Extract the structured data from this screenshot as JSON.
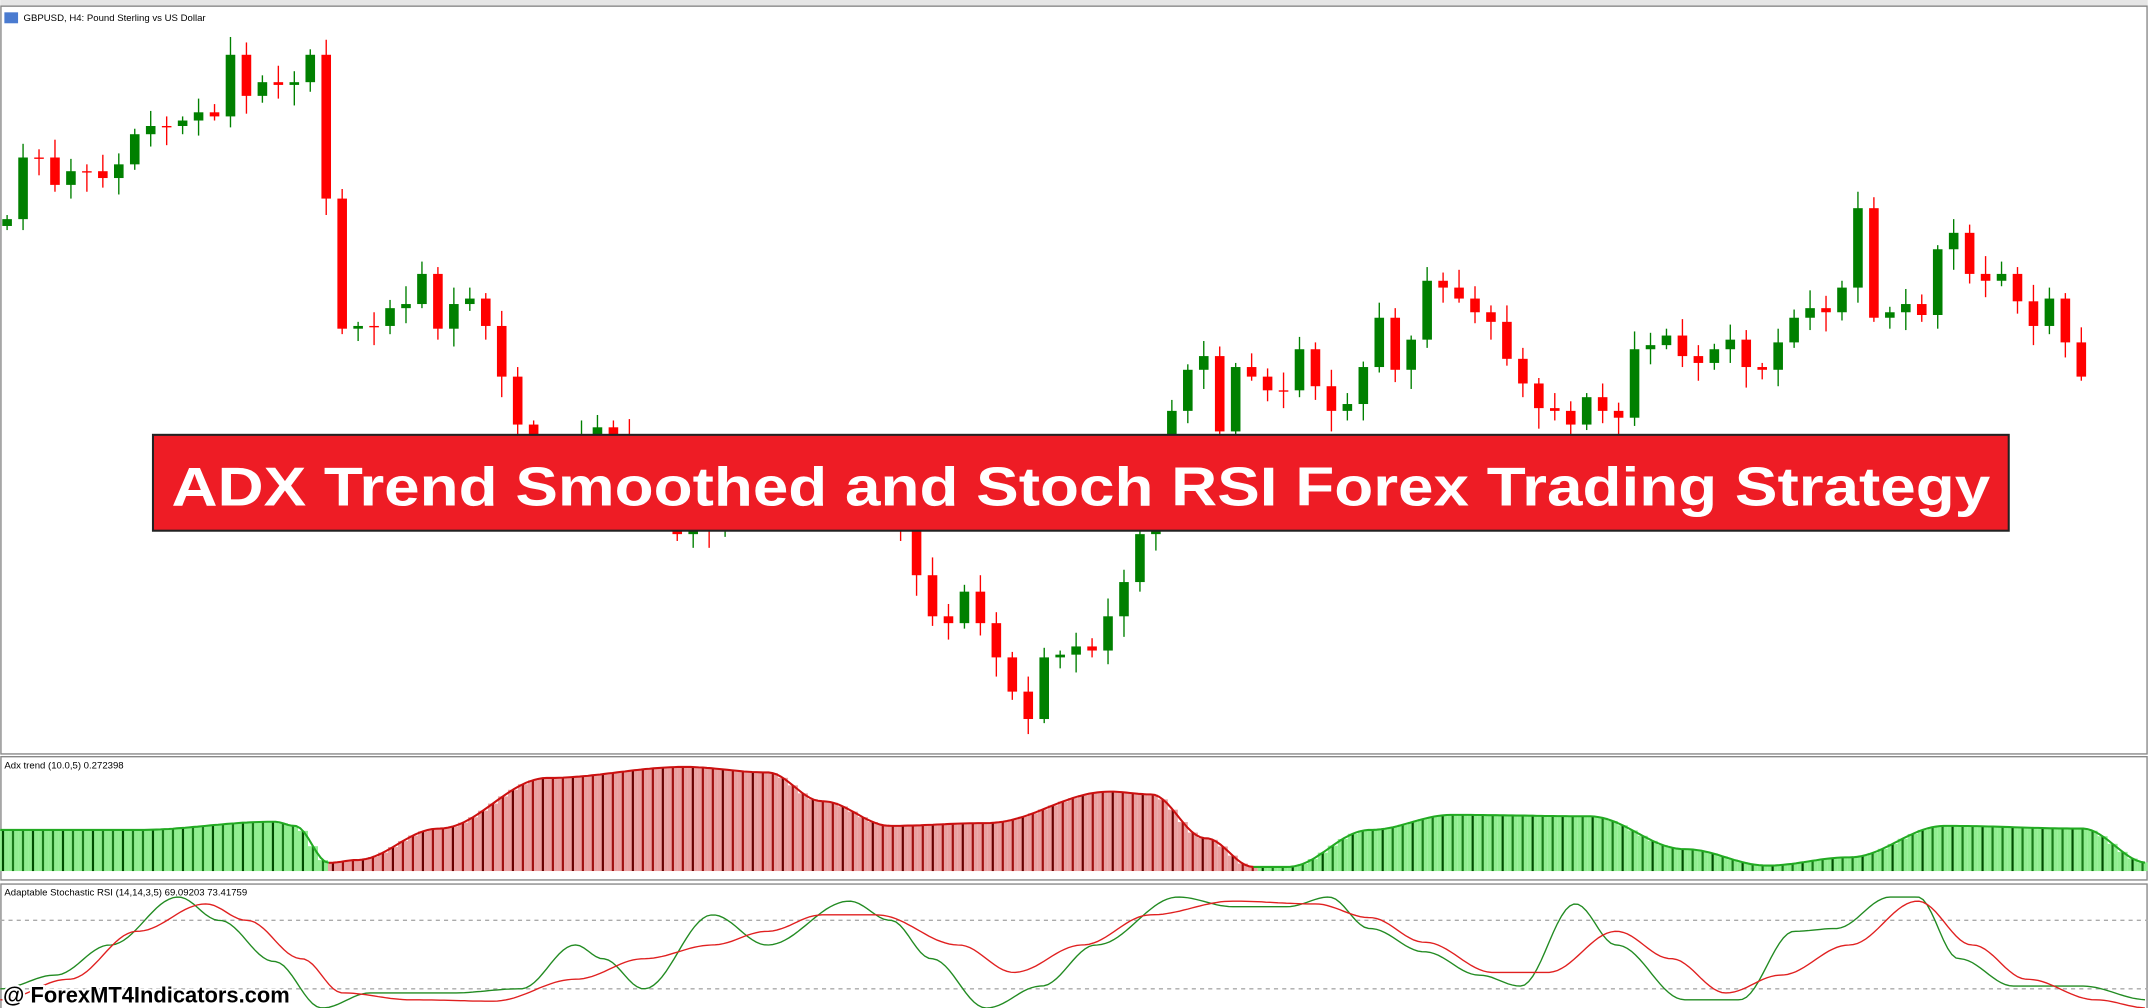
{
  "chart_window": {
    "symbol_label": "GBPUSD, H4:  Pound Sterling vs US Dollar"
  },
  "banner": {
    "title": "ADX Trend Smoothed and Stoch RSI Forex Trading Strategy"
  },
  "indicators": [
    {
      "label": "Adx trend (10.0,5) 0.272398"
    },
    {
      "label": "Adaptable Stochastic RSI (14,14,3,5) 69.09203 73.41759"
    }
  ],
  "watermark": "@ ForexMT4Indicators.com"
}
